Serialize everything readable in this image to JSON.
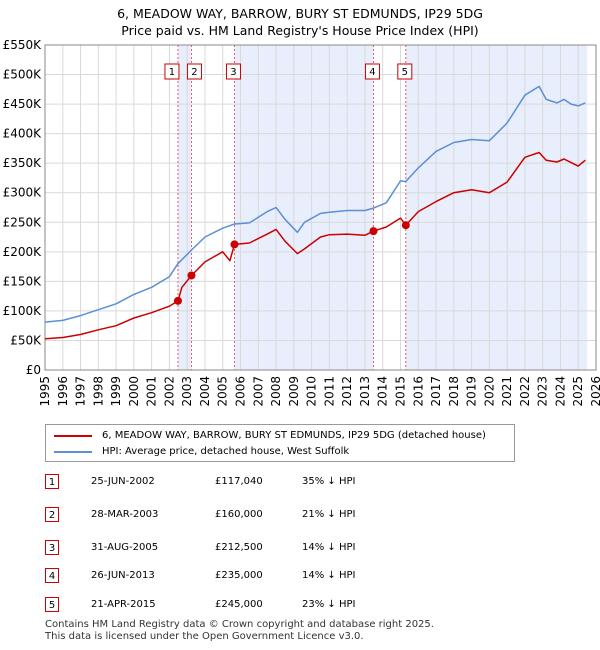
{
  "title_line1": "6, MEADOW WAY, BARROW, BURY ST EDMUNDS, IP29 5DG",
  "title_line2": "Price paid vs. HM Land Registry's House Price Index (HPI)",
  "chart_data": {
    "type": "line",
    "y_ticks": [
      0,
      50000,
      100000,
      150000,
      200000,
      250000,
      300000,
      350000,
      400000,
      450000,
      500000,
      550000
    ],
    "y_tick_labels": [
      "£0",
      "£50K",
      "£100K",
      "£150K",
      "£200K",
      "£250K",
      "£300K",
      "£350K",
      "£400K",
      "£450K",
      "£500K",
      "£550K"
    ],
    "ylim": [
      0,
      550000
    ],
    "xlim": [
      1995,
      2026
    ],
    "x_ticks": [
      1995,
      1996,
      1997,
      1998,
      1999,
      2000,
      2001,
      2002,
      2003,
      2004,
      2005,
      2006,
      2007,
      2008,
      2009,
      2010,
      2011,
      2012,
      2013,
      2014,
      2015,
      2016,
      2017,
      2018,
      2019,
      2020,
      2021,
      2022,
      2023,
      2024,
      2025,
      2026
    ],
    "shaded_ranges": [
      [
        2002.48,
        2003.24
      ],
      [
        2005.66,
        2013.48
      ],
      [
        2015.3,
        2025.5
      ]
    ],
    "series": [
      {
        "name": "6, MEADOW WAY, BARROW, BURY ST EDMUNDS, IP29 5DG (detached house)",
        "color": "#cc0000",
        "x": [
          1995.0,
          1996.0,
          1997.0,
          1998.0,
          1999.0,
          2000.0,
          2001.0,
          2002.0,
          2002.48,
          2002.7,
          2003.24,
          2004.0,
          2005.0,
          2005.4,
          2005.66,
          2006.5,
          2007.5,
          2008.0,
          2008.5,
          2009.2,
          2009.6,
          2010.5,
          2011.0,
          2012.0,
          2013.0,
          2013.48,
          2014.2,
          2015.0,
          2015.3,
          2016.0,
          2017.0,
          2018.0,
          2019.0,
          2020.0,
          2021.0,
          2022.0,
          2022.8,
          2023.2,
          2023.8,
          2024.2,
          2024.6,
          2025.0,
          2025.4
        ],
        "y": [
          53000,
          55000,
          60000,
          68000,
          75000,
          88000,
          97000,
          108000,
          117040,
          140000,
          160000,
          183000,
          200000,
          185000,
          212500,
          215000,
          230000,
          238000,
          218000,
          197000,
          205000,
          225000,
          229000,
          230000,
          228000,
          235000,
          242000,
          257000,
          245000,
          268000,
          285000,
          300000,
          305000,
          300000,
          318000,
          360000,
          368000,
          355000,
          352000,
          357000,
          351000,
          345000,
          355000
        ]
      },
      {
        "name": "HPI: Average price, detached house, West Suffolk",
        "color": "#5b8fd6",
        "x": [
          1995.0,
          1996.0,
          1997.0,
          1998.0,
          1999.0,
          2000.0,
          2001.0,
          2002.0,
          2002.48,
          2003.24,
          2004.0,
          2005.0,
          2005.66,
          2006.5,
          2007.5,
          2008.0,
          2008.5,
          2009.2,
          2009.6,
          2010.5,
          2011.0,
          2012.0,
          2013.0,
          2013.48,
          2014.2,
          2015.0,
          2015.3,
          2016.0,
          2017.0,
          2018.0,
          2019.0,
          2020.0,
          2021.0,
          2022.0,
          2022.8,
          2023.2,
          2023.8,
          2024.2,
          2024.6,
          2025.0,
          2025.4
        ],
        "y": [
          81000,
          84000,
          92000,
          102000,
          112000,
          128000,
          140000,
          158000,
          180000,
          203000,
          225000,
          240000,
          247000,
          249000,
          268000,
          275000,
          255000,
          233000,
          250000,
          265000,
          267000,
          270000,
          270000,
          274000,
          283000,
          320000,
          319000,
          342000,
          370000,
          385000,
          390000,
          388000,
          418000,
          465000,
          480000,
          458000,
          452000,
          458000,
          450000,
          447000,
          452000
        ]
      }
    ],
    "sales": [
      {
        "label": "1",
        "x": 2002.48,
        "y": 117040
      },
      {
        "label": "2",
        "x": 2003.24,
        "y": 160000
      },
      {
        "label": "3",
        "x": 2005.66,
        "y": 212500
      },
      {
        "label": "4",
        "x": 2013.48,
        "y": 235000
      },
      {
        "label": "5",
        "x": 2015.3,
        "y": 245000
      }
    ]
  },
  "legend": {
    "property_label": "6, MEADOW WAY, BARROW, BURY ST EDMUNDS, IP29 5DG (detached house)",
    "hpi_label": "HPI: Average price, detached house, West Suffolk",
    "property_color": "#cc0000",
    "hpi_color": "#5b8fd6"
  },
  "transactions": [
    {
      "num": "1",
      "date": "25-JUN-2002",
      "price": "£117,040",
      "hpi": "35% ↓ HPI"
    },
    {
      "num": "2",
      "date": "28-MAR-2003",
      "price": "£160,000",
      "hpi": "21% ↓ HPI"
    },
    {
      "num": "3",
      "date": "31-AUG-2005",
      "price": "£212,500",
      "hpi": "14% ↓ HPI"
    },
    {
      "num": "4",
      "date": "26-JUN-2013",
      "price": "£235,000",
      "hpi": "14% ↓ HPI"
    },
    {
      "num": "5",
      "date": "21-APR-2015",
      "price": "£245,000",
      "hpi": "23% ↓ HPI"
    }
  ],
  "footer_line1": "Contains HM Land Registry data © Crown copyright and database right 2025.",
  "footer_line2": "This data is licensed under the Open Government Licence v3.0."
}
